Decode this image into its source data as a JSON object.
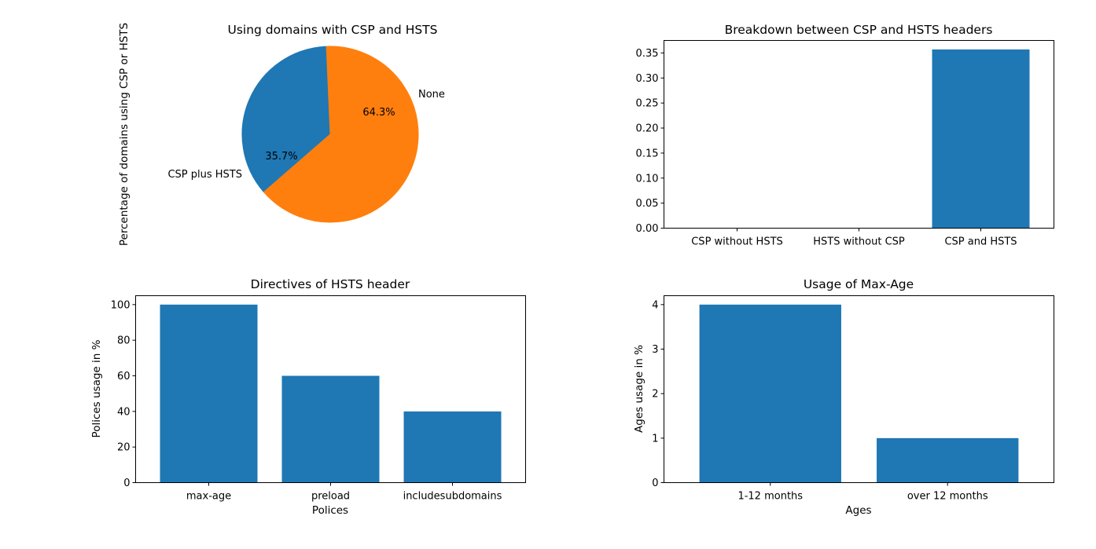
{
  "chart_data": [
    {
      "type": "pie",
      "title": "Using domains with CSP and HSTS",
      "ylabel": "Percentage of domains using CSP or HSTS",
      "slices": [
        {
          "label": "CSP plus HSTS",
          "value": 35.7,
          "pct_label": "35.7%",
          "color": "#1f77b4"
        },
        {
          "label": "None",
          "value": 64.3,
          "pct_label": "64.3%",
          "color": "#ff7f0e"
        }
      ]
    },
    {
      "type": "bar",
      "title": "Breakdown between CSP and HSTS headers",
      "xlabel": "",
      "ylabel": "",
      "categories": [
        "CSP without HSTS",
        "HSTS without CSP",
        "CSP and HSTS"
      ],
      "values": [
        0,
        0,
        0.357
      ],
      "ylim": [
        0,
        0.375
      ],
      "yticks": [
        "0.00",
        "0.05",
        "0.10",
        "0.15",
        "0.20",
        "0.25",
        "0.30",
        "0.35"
      ],
      "color": "#1f77b4"
    },
    {
      "type": "bar",
      "title": "Directives of HSTS header",
      "xlabel": "Polices",
      "ylabel": "Polices usage in %",
      "categories": [
        "max-age",
        "preload",
        "includesubdomains"
      ],
      "values": [
        100,
        60,
        40
      ],
      "ylim": [
        0,
        105
      ],
      "yticks": [
        "0",
        "20",
        "40",
        "60",
        "80",
        "100"
      ],
      "color": "#1f77b4"
    },
    {
      "type": "bar",
      "title": "Usage of Max-Age",
      "xlabel": "Ages",
      "ylabel": "Ages usage in %",
      "categories": [
        "1-12 months",
        "over 12 months"
      ],
      "values": [
        4,
        1
      ],
      "ylim": [
        0,
        4.2
      ],
      "yticks": [
        "0",
        "1",
        "2",
        "3",
        "4"
      ],
      "color": "#1f77b4"
    }
  ]
}
